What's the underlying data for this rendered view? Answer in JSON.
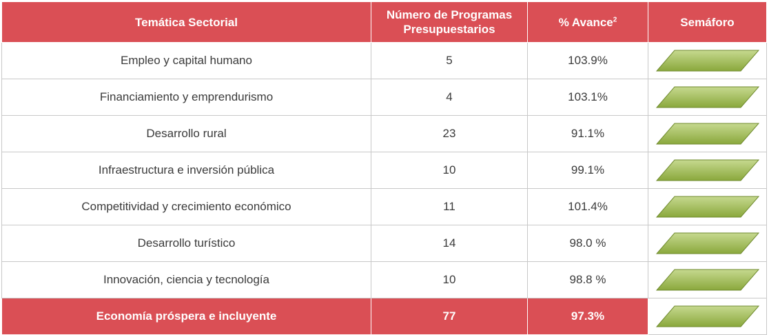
{
  "header": {
    "col1": "Temática Sectorial",
    "col2": "Número de Programas Presupuestarios",
    "col3": "% Avance",
    "col3_sup": "2",
    "col4": "Semáforo"
  },
  "rows": [
    {
      "tema": "Empleo y capital humano",
      "programas": "5",
      "avance": "103.9%",
      "semaforo": "green"
    },
    {
      "tema": "Financiamiento y emprendurismo",
      "programas": "4",
      "avance": "103.1%",
      "semaforo": "green"
    },
    {
      "tema": "Desarrollo rural",
      "programas": "23",
      "avance": "91.1%",
      "semaforo": "green"
    },
    {
      "tema": "Infraestructura e inversión pública",
      "programas": "10",
      "avance": "99.1%",
      "semaforo": "green"
    },
    {
      "tema": "Competitividad y crecimiento económico",
      "programas": "11",
      "avance": "101.4%",
      "semaforo": "green"
    },
    {
      "tema": "Desarrollo turístico",
      "programas": "14",
      "avance": "98.0 %",
      "semaforo": "green"
    },
    {
      "tema": "Innovación, ciencia y tecnología",
      "programas": "10",
      "avance": "98.8 %",
      "semaforo": "green"
    }
  ],
  "total": {
    "tema": "Economía próspera e incluyente",
    "programas": "77",
    "avance": "97.3%",
    "semaforo": "green"
  },
  "colors": {
    "header_bg": "#da4f55",
    "traffic_light_green_top": "#c6d98f",
    "traffic_light_green_bottom": "#8aa83c"
  }
}
